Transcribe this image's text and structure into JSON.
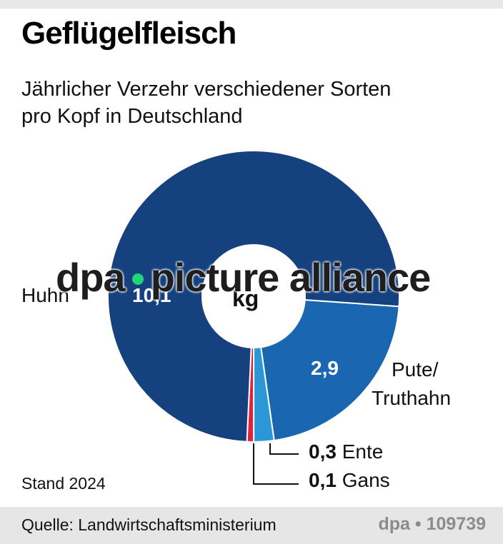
{
  "header": {
    "title": "Geflügelfleisch",
    "subtitle_line1": "Jährlicher Verzehr verschiedener Sorten",
    "subtitle_line2": "pro Kopf in Deutschland"
  },
  "center_unit": "kg",
  "labels": {
    "huhn_name": "Huhn",
    "huhn_value": "10,1",
    "pute_name_line1": "Pute/",
    "pute_name_line2": "Truthahn",
    "pute_value": "2,9",
    "ente_value": "0,3",
    "ente_name": "Ente",
    "gans_value": "0,1",
    "gans_name": "Gans"
  },
  "note": "Stand 2024",
  "footer": {
    "source": "Quelle:  Landwirtschaftsministerium",
    "credit": "dpa • 109739"
  },
  "watermark": {
    "left": "dpa",
    "right": "picture alliance"
  },
  "colors": {
    "huhn": "#15417f",
    "pute": "#1a66b0",
    "ente": "#2b97d6",
    "gans": "#e0233e"
  },
  "chart_data": {
    "type": "pie",
    "variant": "donut",
    "title": "Geflügelfleisch",
    "subtitle": "Jährlicher Verzehr verschiedener Sorten pro Kopf in Deutschland",
    "unit": "kg",
    "categories": [
      "Huhn",
      "Pute/Truthahn",
      "Ente",
      "Gans"
    ],
    "values": [
      10.1,
      2.9,
      0.3,
      0.1
    ],
    "colors": [
      "#15417f",
      "#1a66b0",
      "#2b97d6",
      "#e0233e"
    ],
    "annotations": [
      "Stand 2024"
    ],
    "source": "Landwirtschaftsministerium"
  }
}
